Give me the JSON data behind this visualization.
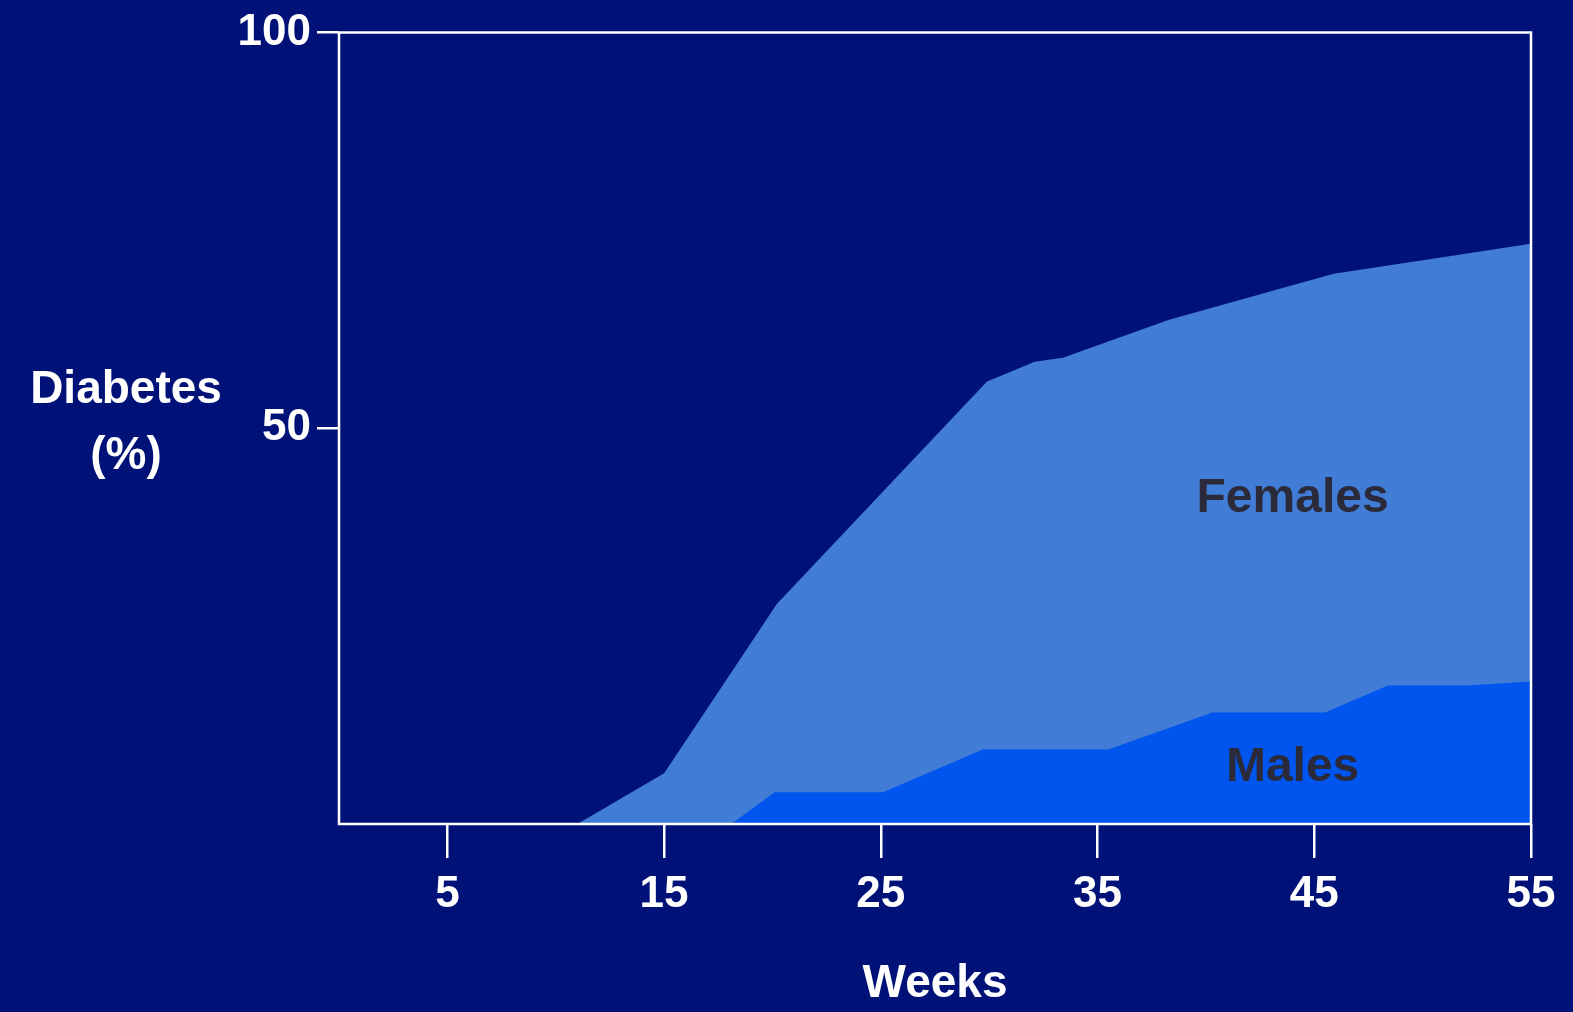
{
  "chart_data": {
    "type": "area",
    "xlabel": "Weeks",
    "ylabel": "Diabetes (%)",
    "xlim": [
      0,
      55
    ],
    "xticks": [
      5,
      15,
      25,
      35,
      45,
      55
    ],
    "ylim": [
      0,
      100
    ],
    "yticks": [
      50,
      100
    ],
    "grid": false,
    "legend": false,
    "marker": "none",
    "series": [
      {
        "name": "Females",
        "color": "#417cd6",
        "x": [
          11,
          15,
          20.2,
          29.9,
          32.1,
          33.4,
          38.3,
          45.9,
          55
        ],
        "values": [
          0,
          6.4,
          27.8,
          55.9,
          58.4,
          58.9,
          63.7,
          69.5,
          73.3
        ]
      },
      {
        "name": "Males",
        "color": "#0055ee",
        "x": [
          18.1,
          20.1,
          25.1,
          29.7,
          35.5,
          40.3,
          45.5,
          48.4,
          52,
          55
        ],
        "values": [
          0,
          4,
          4,
          9.4,
          9.4,
          14.1,
          14.1,
          17.5,
          17.5,
          18
        ]
      }
    ]
  }
}
